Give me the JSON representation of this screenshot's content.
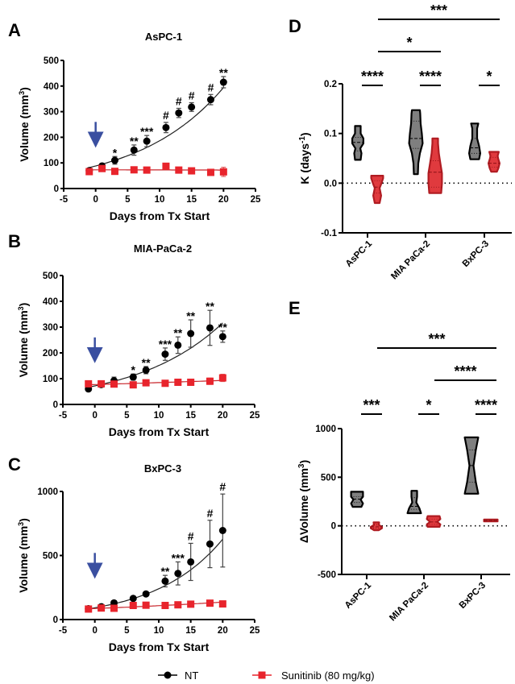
{
  "legend": {
    "entries": [
      {
        "name": "NT",
        "marker": "circle",
        "color": "#000000"
      },
      {
        "name": "Sunitinib (80 mg/kg)",
        "marker": "square",
        "color": "#e8242c"
      }
    ]
  },
  "colors": {
    "nt": "#000000",
    "sunitinib": "#e8242c",
    "arrow": "#3a4fa0",
    "violin_nt_fill": "#7f7f7f",
    "violin_sun_fill": "#e03a3e"
  },
  "chart_data": [
    {
      "id": "A",
      "type": "line",
      "panel_label": "A",
      "title": "AsPC-1",
      "xlabel": "Days from Tx Start",
      "ylabel": "Volume (mm3)",
      "ylabel_main": "Volume (mm",
      "ylabel_sup": "3",
      "xlim": [
        -5,
        25
      ],
      "ylim": [
        0,
        500
      ],
      "xticks": [
        -5,
        0,
        5,
        10,
        15,
        20,
        25
      ],
      "yticks": [
        0,
        100,
        200,
        300,
        400,
        500
      ],
      "treatment_arrow_x": 0,
      "x": [
        -1,
        1,
        3,
        6,
        8,
        11,
        13,
        15,
        18,
        20
      ],
      "series": [
        {
          "name": "NT",
          "values": [
            70,
            88,
            110,
            150,
            185,
            238,
            295,
            318,
            347,
            415
          ],
          "errors": [
            8,
            10,
            15,
            20,
            22,
            20,
            18,
            17,
            20,
            22
          ],
          "fit": {
            "a": 88,
            "k": 0.075,
            "x_from": -1,
            "x_to": 20
          }
        },
        {
          "name": "Sunitinib (80 mg/kg)",
          "values": [
            66,
            78,
            67,
            73,
            72,
            87,
            72,
            69,
            63,
            65
          ],
          "errors": [
            5,
            6,
            5,
            5,
            5,
            6,
            5,
            6,
            5,
            18
          ],
          "fit": {
            "a": 73,
            "k": -0.0006,
            "x_from": -1,
            "x_to": 20
          }
        }
      ],
      "annotations": [
        {
          "x": 3,
          "text": "*"
        },
        {
          "x": 6,
          "text": "**"
        },
        {
          "x": 8,
          "text": "***"
        },
        {
          "x": 11,
          "text": "#"
        },
        {
          "x": 13,
          "text": "#"
        },
        {
          "x": 15,
          "text": "#"
        },
        {
          "x": 18,
          "text": "#"
        },
        {
          "x": 20,
          "text": "**"
        }
      ]
    },
    {
      "id": "B",
      "type": "line",
      "panel_label": "B",
      "title": "MIA-PaCa-2",
      "xlabel": "Days from Tx Start",
      "ylabel": "Volume (mm3)",
      "ylabel_main": "Volume (mm",
      "ylabel_sup": "3",
      "xlim": [
        -5,
        25
      ],
      "ylim": [
        0,
        500
      ],
      "xticks": [
        -5,
        0,
        5,
        10,
        15,
        20,
        25
      ],
      "yticks": [
        0,
        100,
        200,
        300,
        400,
        500
      ],
      "treatment_arrow_x": 0,
      "x": [
        -1,
        1,
        3,
        6,
        8,
        11,
        13,
        15,
        18,
        20
      ],
      "series": [
        {
          "name": "NT",
          "values": [
            60,
            77,
            92,
            106,
            133,
            195,
            230,
            275,
            297,
            263
          ],
          "errors": [
            8,
            10,
            14,
            12,
            14,
            24,
            32,
            53,
            68,
            22
          ],
          "fit": {
            "a": 72,
            "k": 0.074,
            "x_from": -1,
            "x_to": 20
          }
        },
        {
          "name": "Sunitinib (80 mg/kg)",
          "values": [
            80,
            80,
            79,
            76,
            84,
            82,
            86,
            86,
            90,
            103
          ],
          "errors": [
            6,
            7,
            6,
            6,
            6,
            6,
            8,
            12,
            12,
            14
          ],
          "fit": {
            "a": 77,
            "k": 0.0095,
            "x_from": -1,
            "x_to": 20
          }
        }
      ],
      "annotations": [
        {
          "x": 6,
          "text": "*"
        },
        {
          "x": 8,
          "text": "**"
        },
        {
          "x": 11,
          "text": "***"
        },
        {
          "x": 13,
          "text": "**"
        },
        {
          "x": 15,
          "text": "**"
        },
        {
          "x": 18,
          "text": "**"
        },
        {
          "x": 20,
          "text": "**"
        }
      ]
    },
    {
      "id": "C",
      "type": "line",
      "panel_label": "C",
      "title": "BxPC-3",
      "xlabel": "Days from Tx Start",
      "ylabel": "Volume (mm3)",
      "ylabel_main": "Volume (mm",
      "ylabel_sup": "3",
      "xlim": [
        -5,
        25
      ],
      "ylim": [
        0,
        1000
      ],
      "xticks": [
        -5,
        0,
        5,
        10,
        15,
        20,
        25
      ],
      "yticks": [
        0,
        500,
        1000
      ],
      "treatment_arrow_x": 0,
      "x": [
        -1,
        1,
        3,
        6,
        8,
        11,
        13,
        15,
        18,
        20
      ],
      "series": [
        {
          "name": "NT",
          "values": [
            85,
            100,
            130,
            165,
            200,
            300,
            360,
            450,
            590,
            695
          ],
          "errors": [
            6,
            8,
            8,
            8,
            10,
            45,
            90,
            145,
            185,
            285
          ],
          "fit": {
            "a": 92,
            "k": 0.096,
            "x_from": -1,
            "x_to": 20
          }
        },
        {
          "name": "Sunitinib (80 mg/kg)",
          "values": [
            82,
            90,
            88,
            110,
            112,
            110,
            115,
            120,
            128,
            122
          ],
          "errors": [
            5,
            5,
            5,
            6,
            6,
            6,
            6,
            6,
            8,
            8
          ],
          "fit": {
            "a": 86,
            "k": 0.023,
            "x_from": -1,
            "x_to": 20
          }
        }
      ],
      "annotations": [
        {
          "x": 11,
          "text": "**"
        },
        {
          "x": 13,
          "text": "***"
        },
        {
          "x": 15,
          "text": "#"
        },
        {
          "x": 18,
          "text": "#"
        },
        {
          "x": 20,
          "text": "#"
        }
      ]
    },
    {
      "id": "D",
      "type": "violin",
      "panel_label": "D",
      "ylabel": "K (days-1)",
      "ylabel_main": "K (days",
      "ylabel_sup": "-1",
      "ylabel_end": ")",
      "ylim": [
        -0.1,
        0.2
      ],
      "yticks": [
        -0.1,
        0.0,
        0.1,
        0.2
      ],
      "ytick_labels": [
        "-0.1",
        "0.0",
        "0.1",
        "0.2"
      ],
      "reference_line": 0,
      "categories": [
        "AsPC-1",
        "MIA PaCa-2",
        "BxPC-3"
      ],
      "series": [
        {
          "name": "NT",
          "groups": [
            {
              "min": 0.047,
              "max": 0.115,
              "median": 0.082,
              "q1": 0.065,
              "q3": 0.092,
              "profile": [
                [
                  0.047,
                  0.35
                ],
                [
                  0.06,
                  0.45
                ],
                [
                  0.07,
                  0.3
                ],
                [
                  0.08,
                  0.7
                ],
                [
                  0.09,
                  0.7
                ],
                [
                  0.1,
                  0.35
                ],
                [
                  0.115,
                  0.35
                ]
              ]
            },
            {
              "min": 0.018,
              "max": 0.147,
              "median": 0.09,
              "q1": 0.07,
              "q3": 0.125,
              "profile": [
                [
                  0.018,
                  0.25
                ],
                [
                  0.04,
                  0.3
                ],
                [
                  0.06,
                  0.5
                ],
                [
                  0.08,
                  0.85
                ],
                [
                  0.1,
                  0.75
                ],
                [
                  0.12,
                  0.6
                ],
                [
                  0.14,
                  0.55
                ],
                [
                  0.147,
                  0.5
                ]
              ]
            },
            {
              "min": 0.048,
              "max": 0.12,
              "median": 0.071,
              "q1": 0.06,
              "q3": 0.09,
              "profile": [
                [
                  0.048,
                  0.55
                ],
                [
                  0.06,
                  0.7
                ],
                [
                  0.075,
                  0.55
                ],
                [
                  0.09,
                  0.3
                ],
                [
                  0.11,
                  0.3
                ],
                [
                  0.12,
                  0.45
                ]
              ]
            }
          ]
        },
        {
          "name": "Sunitinib (80 mg/kg)",
          "groups": [
            {
              "min": -0.04,
              "max": 0.015,
              "median": -0.008,
              "q1": -0.02,
              "q3": 0.005,
              "profile": [
                [
                  -0.04,
                  0.3
                ],
                [
                  -0.025,
                  0.5
                ],
                [
                  -0.01,
                  0.3
                ],
                [
                  0.0,
                  0.55
                ],
                [
                  0.01,
                  0.75
                ],
                [
                  0.015,
                  0.75
                ]
              ]
            },
            {
              "min": -0.02,
              "max": 0.09,
              "median": 0.022,
              "q1": -0.008,
              "q3": 0.045,
              "profile": [
                [
                  -0.02,
                  0.75
                ],
                [
                  0.0,
                  0.85
                ],
                [
                  0.02,
                  0.85
                ],
                [
                  0.04,
                  0.65
                ],
                [
                  0.06,
                  0.45
                ],
                [
                  0.08,
                  0.35
                ],
                [
                  0.09,
                  0.35
                ]
              ]
            },
            {
              "min": 0.023,
              "max": 0.063,
              "median": 0.04,
              "q1": 0.032,
              "q3": 0.052,
              "profile": [
                [
                  0.023,
                  0.35
                ],
                [
                  0.03,
                  0.55
                ],
                [
                  0.04,
                  0.7
                ],
                [
                  0.05,
                  0.5
                ],
                [
                  0.055,
                  0.45
                ],
                [
                  0.063,
                  0.6
                ]
              ]
            }
          ]
        }
      ],
      "significance": [
        {
          "from": 0,
          "to": 0,
          "within": true,
          "text": "****",
          "level": 0
        },
        {
          "from": 1,
          "to": 1,
          "within": true,
          "text": "****",
          "level": 0
        },
        {
          "from": 2,
          "to": 2,
          "within": true,
          "text": "*",
          "level": 0
        },
        {
          "from": 0,
          "to": 1,
          "within": false,
          "text": "*",
          "level": 1
        },
        {
          "from": 0,
          "to": 2,
          "within": false,
          "text": "***",
          "level": 2
        }
      ]
    },
    {
      "id": "E",
      "type": "violin",
      "panel_label": "E",
      "ylabel": "ΔVolume (mm3)",
      "ylabel_main": "ΔVolume (mm",
      "ylabel_sup": "3",
      "ylabel_end": ")",
      "ylim": [
        -500,
        1000
      ],
      "yticks": [
        -500,
        0,
        500,
        1000
      ],
      "ytick_labels": [
        "-500",
        "0",
        "500",
        "1000"
      ],
      "reference_line": 0,
      "categories": [
        "AsPC-1",
        "MIA PaCa-2",
        "BxPC-3"
      ],
      "series": [
        {
          "name": "NT",
          "groups": [
            {
              "min": 195,
              "max": 350,
              "median": 275,
              "q1": 240,
              "q3": 300,
              "profile": [
                [
                  195,
                  0.55
                ],
                [
                  230,
                  0.75
                ],
                [
                  270,
                  0.45
                ],
                [
                  300,
                  0.75
                ],
                [
                  350,
                  0.75
                ]
              ]
            },
            {
              "min": 130,
              "max": 360,
              "median": 200,
              "q1": 170,
              "q3": 290,
              "profile": [
                [
                  130,
                  0.85
                ],
                [
                  180,
                  0.65
                ],
                [
                  240,
                  0.25
                ],
                [
                  300,
                  0.35
                ],
                [
                  360,
                  0.35
                ]
              ]
            },
            {
              "min": 330,
              "max": 910,
              "median": 620,
              "q1": 450,
              "q3": 780,
              "profile": [
                [
                  330,
                  0.85
                ],
                [
                  450,
                  0.55
                ],
                [
                  620,
                  0.25
                ],
                [
                  780,
                  0.55
                ],
                [
                  910,
                  0.85
                ]
              ]
            }
          ]
        },
        {
          "name": "Sunitinib (80 mg/kg)",
          "groups": [
            {
              "min": -45,
              "max": 35,
              "median": -10,
              "q1": -25,
              "q3": 10,
              "profile": [
                [
                  -45,
                  0.3
                ],
                [
                  -25,
                  0.7
                ],
                [
                  -10,
                  0.7
                ],
                [
                  10,
                  0.3
                ],
                [
                  35,
                  0.35
                ]
              ]
            },
            {
              "min": -10,
              "max": 100,
              "median": 40,
              "q1": 15,
              "q3": 70,
              "profile": [
                [
                  -10,
                  0.75
                ],
                [
                  15,
                  0.85
                ],
                [
                  40,
                  0.45
                ],
                [
                  70,
                  0.85
                ],
                [
                  100,
                  0.75
                ]
              ]
            },
            {
              "min": 45,
              "max": 65,
              "median": 55,
              "q1": 50,
              "q3": 60,
              "profile": [
                [
                  45,
                  0.85
                ],
                [
                  55,
                  0.85
                ],
                [
                  65,
                  0.85
                ]
              ]
            }
          ]
        }
      ],
      "significance": [
        {
          "from": 0,
          "to": 0,
          "within": true,
          "text": "***",
          "level": 0
        },
        {
          "from": 1,
          "to": 1,
          "within": true,
          "text": "*",
          "level": 0
        },
        {
          "from": 2,
          "to": 2,
          "within": true,
          "text": "****",
          "level": 0
        },
        {
          "from": 1,
          "to": 2,
          "within": false,
          "text": "****",
          "level": 1
        },
        {
          "from": 0,
          "to": 2,
          "within": false,
          "text": "***",
          "level": 2
        }
      ]
    }
  ]
}
